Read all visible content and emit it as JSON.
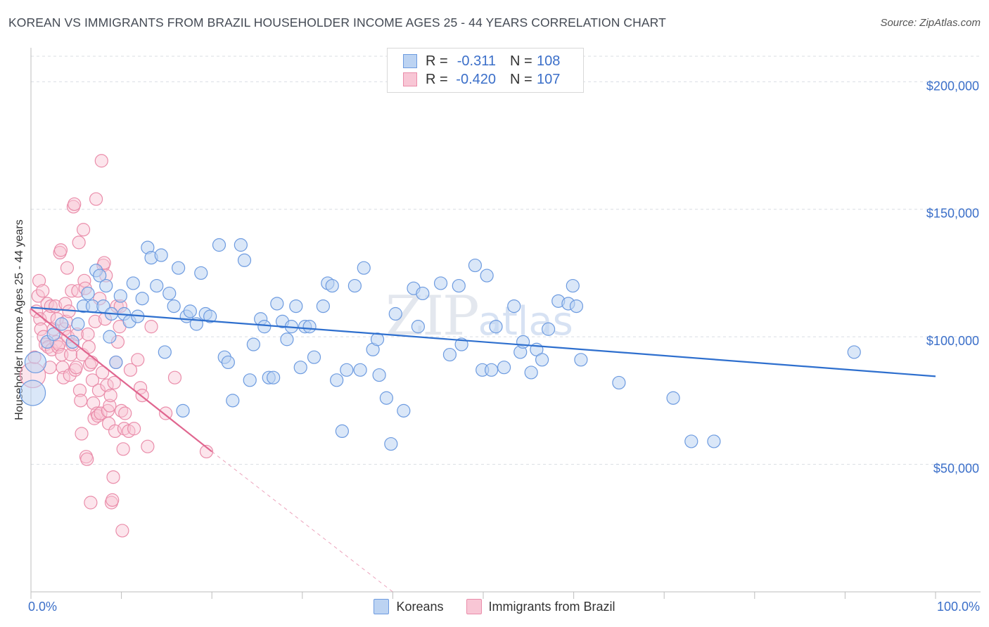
{
  "header": {
    "title": "KOREAN VS IMMIGRANTS FROM BRAZIL HOUSEHOLDER INCOME AGES 25 - 44 YEARS CORRELATION CHART",
    "source": "Source: ZipAtlas.com"
  },
  "watermark": {
    "zip": "ZIP",
    "atlas": "atlas"
  },
  "legend_top": {
    "rows": [
      {
        "r_key": "R =",
        "r_value": "-0.311",
        "n_key": "N =",
        "n_value": "108"
      },
      {
        "r_key": "R =",
        "r_value": "-0.420",
        "n_key": "N =",
        "n_value": "107"
      }
    ]
  },
  "legend_bottom": {
    "items": [
      "Koreans",
      "Immigrants from Brazil"
    ]
  },
  "colors": {
    "koreans_fill": "#bcd3f2",
    "koreans_stroke": "#6d9be0",
    "koreans_line": "#2e6fce",
    "brazil_fill": "#f8c6d5",
    "brazil_stroke": "#ea8daa",
    "brazil_line": "#e0668f",
    "tick_label": "#3b6fc9",
    "grid": "#d9dde3"
  },
  "chart_data": {
    "type": "scatter",
    "title": "KOREAN VS IMMIGRANTS FROM BRAZIL HOUSEHOLDER INCOME AGES 25 - 44 YEARS CORRELATION CHART",
    "xlabel": "",
    "ylabel": "Householder Income Ages 25 - 44 years",
    "xlim": [
      0,
      100
    ],
    "ylim": [
      0,
      210000
    ],
    "x_tick_labels": [
      "0.0%",
      "100.0%"
    ],
    "y_ticks": [
      50000,
      100000,
      150000,
      200000
    ],
    "y_tick_labels": [
      "$50,000",
      "$100,000",
      "$150,000",
      "$200,000"
    ],
    "grid": true,
    "legend": "top-center",
    "series": [
      {
        "name": "Koreans",
        "r": -0.311,
        "n": 108,
        "trend": {
          "x": [
            0,
            100
          ],
          "y": [
            111500,
            84500
          ]
        },
        "points": [
          [
            0.2,
            78000
          ],
          [
            0.5,
            90000
          ],
          [
            1.8,
            98000
          ],
          [
            2.5,
            101000
          ],
          [
            3.4,
            105000
          ],
          [
            4.6,
            98000
          ],
          [
            5.2,
            105000
          ],
          [
            5.8,
            112000
          ],
          [
            6.3,
            117000
          ],
          [
            6.8,
            112000
          ],
          [
            7.2,
            126000
          ],
          [
            7.6,
            124000
          ],
          [
            8.0,
            112000
          ],
          [
            8.3,
            120000
          ],
          [
            8.7,
            100000
          ],
          [
            8.9,
            109000
          ],
          [
            9.4,
            90000
          ],
          [
            9.9,
            116000
          ],
          [
            10.3,
            109000
          ],
          [
            10.9,
            106000
          ],
          [
            11.3,
            121000
          ],
          [
            11.8,
            108000
          ],
          [
            12.3,
            115000
          ],
          [
            12.9,
            135000
          ],
          [
            13.3,
            131000
          ],
          [
            13.9,
            120000
          ],
          [
            14.4,
            132000
          ],
          [
            14.8,
            94000
          ],
          [
            15.3,
            117000
          ],
          [
            15.8,
            112000
          ],
          [
            16.3,
            127000
          ],
          [
            16.8,
            71000
          ],
          [
            17.2,
            108000
          ],
          [
            17.6,
            110000
          ],
          [
            18.3,
            105000
          ],
          [
            18.8,
            125000
          ],
          [
            19.3,
            109000
          ],
          [
            19.8,
            108000
          ],
          [
            20.8,
            136000
          ],
          [
            21.4,
            92000
          ],
          [
            21.8,
            90000
          ],
          [
            22.3,
            75000
          ],
          [
            23.2,
            136000
          ],
          [
            23.6,
            130000
          ],
          [
            24.2,
            83000
          ],
          [
            24.6,
            97000
          ],
          [
            25.4,
            107000
          ],
          [
            25.8,
            104000
          ],
          [
            26.3,
            84000
          ],
          [
            26.8,
            84000
          ],
          [
            27.2,
            113000
          ],
          [
            27.8,
            106000
          ],
          [
            28.3,
            99000
          ],
          [
            28.8,
            104000
          ],
          [
            29.3,
            112000
          ],
          [
            29.8,
            88000
          ],
          [
            30.3,
            104000
          ],
          [
            30.8,
            104000
          ],
          [
            31.3,
            92000
          ],
          [
            32.3,
            112000
          ],
          [
            32.8,
            121000
          ],
          [
            33.3,
            120000
          ],
          [
            33.8,
            83000
          ],
          [
            34.4,
            63000
          ],
          [
            34.9,
            87000
          ],
          [
            35.8,
            120000
          ],
          [
            36.4,
            87000
          ],
          [
            36.8,
            127000
          ],
          [
            37.8,
            95000
          ],
          [
            38.3,
            99000
          ],
          [
            38.5,
            85000
          ],
          [
            39.3,
            76000
          ],
          [
            39.8,
            58000
          ],
          [
            40.3,
            109000
          ],
          [
            41.2,
            71000
          ],
          [
            42.3,
            119000
          ],
          [
            42.8,
            104000
          ],
          [
            43.3,
            117000
          ],
          [
            45.3,
            121000
          ],
          [
            46.3,
            93000
          ],
          [
            47.3,
            120000
          ],
          [
            47.6,
            97000
          ],
          [
            49.1,
            128000
          ],
          [
            49.9,
            87000
          ],
          [
            50.4,
            124000
          ],
          [
            50.9,
            87000
          ],
          [
            51.4,
            104000
          ],
          [
            52.3,
            88000
          ],
          [
            53.4,
            112000
          ],
          [
            54.1,
            94000
          ],
          [
            54.4,
            98000
          ],
          [
            55.3,
            86000
          ],
          [
            55.9,
            95000
          ],
          [
            56.5,
            91000
          ],
          [
            57.2,
            103000
          ],
          [
            58.3,
            114000
          ],
          [
            59.4,
            113000
          ],
          [
            59.9,
            120000
          ],
          [
            60.3,
            112000
          ],
          [
            60.8,
            91000
          ],
          [
            65.0,
            82000
          ],
          [
            71.0,
            76000
          ],
          [
            73.0,
            59000
          ],
          [
            75.5,
            59000
          ],
          [
            91.0,
            94000
          ]
        ],
        "point_sizes_note": "two enlarged points near x=0"
      },
      {
        "name": "Immigrants from Brazil",
        "r": -0.42,
        "n": 107,
        "trend": {
          "x": [
            0,
            20
          ],
          "y": [
            111000,
            55000
          ]
        },
        "trend_dashed": {
          "x": [
            20,
            40
          ],
          "y": [
            55000,
            0
          ]
        },
        "points": [
          [
            0.2,
            85000
          ],
          [
            0.4,
            92000
          ],
          [
            0.6,
            110000
          ],
          [
            0.8,
            116000
          ],
          [
            0.9,
            122000
          ],
          [
            1.0,
            107000
          ],
          [
            1.1,
            103000
          ],
          [
            1.3,
            118000
          ],
          [
            1.4,
            100000
          ],
          [
            1.6,
            97000
          ],
          [
            1.8,
            113000
          ],
          [
            1.9,
            96000
          ],
          [
            2.0,
            108000
          ],
          [
            2.1,
            88000
          ],
          [
            2.2,
            112000
          ],
          [
            2.3,
            95000
          ],
          [
            2.5,
            103000
          ],
          [
            2.7,
            112000
          ],
          [
            2.8,
            98000
          ],
          [
            2.9,
            107000
          ],
          [
            3.0,
            96000
          ],
          [
            3.1,
            97000
          ],
          [
            3.2,
            133000
          ],
          [
            3.3,
            134000
          ],
          [
            3.4,
            93000
          ],
          [
            3.5,
            88000
          ],
          [
            3.6,
            84000
          ],
          [
            3.7,
            103000
          ],
          [
            3.8,
            113000
          ],
          [
            3.9,
            106000
          ],
          [
            4.0,
            127000
          ],
          [
            4.1,
            100000
          ],
          [
            4.2,
            110000
          ],
          [
            4.3,
            85000
          ],
          [
            4.4,
            93000
          ],
          [
            4.5,
            118000
          ],
          [
            4.6,
            97000
          ],
          [
            4.7,
            151000
          ],
          [
            4.8,
            152000
          ],
          [
            4.9,
            87000
          ],
          [
            5.0,
            88000
          ],
          [
            5.1,
            101000
          ],
          [
            5.2,
            118000
          ],
          [
            5.3,
            137000
          ],
          [
            5.4,
            79000
          ],
          [
            5.5,
            75000
          ],
          [
            5.6,
            62000
          ],
          [
            5.7,
            93000
          ],
          [
            5.8,
            142000
          ],
          [
            5.9,
            122000
          ],
          [
            6.0,
            119000
          ],
          [
            6.1,
            53000
          ],
          [
            6.2,
            52000
          ],
          [
            6.3,
            101000
          ],
          [
            6.4,
            96000
          ],
          [
            6.5,
            89000
          ],
          [
            6.6,
            35000
          ],
          [
            6.7,
            90000
          ],
          [
            6.8,
            83000
          ],
          [
            6.9,
            74000
          ],
          [
            7.0,
            68000
          ],
          [
            7.1,
            106000
          ],
          [
            7.2,
            154000
          ],
          [
            7.3,
            70000
          ],
          [
            7.4,
            69000
          ],
          [
            7.5,
            79000
          ],
          [
            7.6,
            115000
          ],
          [
            7.7,
            70000
          ],
          [
            7.8,
            169000
          ],
          [
            7.9,
            86000
          ],
          [
            8.0,
            128000
          ],
          [
            8.1,
            129000
          ],
          [
            8.2,
            107000
          ],
          [
            8.3,
            124000
          ],
          [
            8.4,
            81000
          ],
          [
            8.5,
            71000
          ],
          [
            8.6,
            66000
          ],
          [
            8.7,
            73000
          ],
          [
            8.8,
            77000
          ],
          [
            8.9,
            35000
          ],
          [
            9.0,
            36000
          ],
          [
            9.1,
            45000
          ],
          [
            9.2,
            82000
          ],
          [
            9.3,
            63000
          ],
          [
            9.4,
            90000
          ],
          [
            9.5,
            112000
          ],
          [
            9.6,
            98000
          ],
          [
            9.8,
            104000
          ],
          [
            9.9,
            112000
          ],
          [
            10.0,
            71000
          ],
          [
            10.1,
            24000
          ],
          [
            10.2,
            56000
          ],
          [
            10.3,
            64000
          ],
          [
            10.4,
            70000
          ],
          [
            10.8,
            63000
          ],
          [
            11.0,
            87000
          ],
          [
            11.4,
            64000
          ],
          [
            11.8,
            91000
          ],
          [
            12.1,
            80000
          ],
          [
            12.3,
            77000
          ],
          [
            12.9,
            57000
          ],
          [
            13.3,
            104000
          ],
          [
            14.9,
            70000
          ],
          [
            15.9,
            84000
          ],
          [
            19.4,
            55000
          ]
        ],
        "point_sizes_note": "one enlarged point near x=0"
      }
    ]
  }
}
